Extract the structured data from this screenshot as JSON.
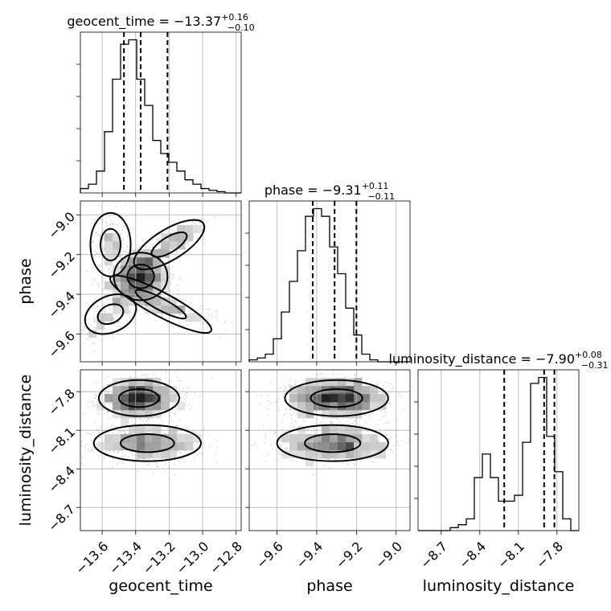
{
  "chart_data": {
    "type": "corner",
    "grid": true,
    "parameters": [
      "geocent_time",
      "phase",
      "luminosity_distance"
    ],
    "axis_labels": {
      "x": [
        "geocent_time",
        "phase",
        "luminosity_distance"
      ],
      "y": [
        "phase",
        "luminosity_distance"
      ]
    },
    "titles": [
      {
        "param": "geocent_time",
        "prefix": "geocent_time = ",
        "median": "−13.37",
        "plus": "+0.16",
        "minus": "−0.10"
      },
      {
        "param": "phase",
        "prefix": "phase = ",
        "median": "−9.31",
        "plus": "+0.11",
        "minus": "−0.11"
      },
      {
        "param": "luminosity_distance",
        "prefix": "luminosity_distance = ",
        "median": "−7.90",
        "plus": "+0.08",
        "minus": "−0.31"
      }
    ],
    "ranges": {
      "geocent_time": [
        -13.73,
        -12.77
      ],
      "phase": [
        -9.74,
        -8.93
      ],
      "luminosity_distance": [
        -8.88,
        -7.63
      ]
    },
    "ticks": {
      "geocent_time": [
        -13.6,
        -13.4,
        -13.2,
        -13.0,
        -12.8
      ],
      "phase": [
        -9.6,
        -9.4,
        -9.2,
        -9.0
      ],
      "luminosity_distance": [
        -8.7,
        -8.4,
        -8.1,
        -7.8
      ]
    },
    "tick_labels": {
      "geocent_time": [
        "−13.6",
        "−13.4",
        "−13.2",
        "−13.0",
        "−12.8"
      ],
      "phase": [
        "−9.6",
        "−9.4",
        "−9.2",
        "−9.0"
      ],
      "luminosity_distance": [
        "−8.7",
        "−8.4",
        "−8.1",
        "−7.8"
      ]
    },
    "quantiles": {
      "geocent_time": [
        -13.47,
        -13.37,
        -13.21
      ],
      "phase": [
        -9.42,
        -9.31,
        -9.2
      ],
      "luminosity_distance": [
        -8.21,
        -7.9,
        -7.82
      ]
    },
    "histograms": {
      "geocent_time": [
        1,
        2,
        5,
        14,
        26,
        34,
        35,
        26,
        20,
        12,
        9,
        7,
        5,
        3,
        2,
        1,
        0.6,
        0.3,
        0,
        0
      ],
      "phase": [
        0.5,
        1,
        2,
        6,
        13,
        21,
        29,
        38,
        40,
        38,
        30,
        23,
        14,
        7,
        2,
        0.5,
        0,
        0,
        0,
        0
      ],
      "luminosity_distance": [
        0,
        0,
        0,
        0,
        0.5,
        1,
        2,
        9,
        13,
        9,
        5,
        5,
        6,
        15,
        25,
        26,
        16,
        10,
        2,
        0
      ]
    },
    "density": {
      "geocent_time__phase": {
        "modes": [
          {
            "x": -13.37,
            "y": -9.31,
            "sx": 0.08,
            "sy": 0.06,
            "n": 900
          },
          {
            "x": -13.2,
            "y": -9.15,
            "sx": 0.12,
            "sy": 0.07,
            "n": 300,
            "corr": 0.9
          },
          {
            "x": -13.25,
            "y": -9.45,
            "sx": 0.17,
            "sy": 0.05,
            "n": 350,
            "corr": -0.8
          },
          {
            "x": -13.55,
            "y": -9.15,
            "sx": 0.06,
            "sy": 0.08,
            "n": 200
          },
          {
            "x": -13.55,
            "y": -9.5,
            "sx": 0.08,
            "sy": 0.07,
            "n": 200,
            "corr": 0.7
          }
        ]
      },
      "geocent_time__luminosity_distance": {
        "modes": [
          {
            "x": -13.38,
            "y": -7.85,
            "sx": 0.12,
            "sy": 0.07,
            "n": 1000
          },
          {
            "x": -13.33,
            "y": -8.2,
            "sx": 0.16,
            "sy": 0.07,
            "n": 700
          }
        ]
      },
      "phase__luminosity_distance": {
        "modes": [
          {
            "x": -9.3,
            "y": -7.85,
            "sx": 0.13,
            "sy": 0.07,
            "n": 1000
          },
          {
            "x": -9.32,
            "y": -8.2,
            "sx": 0.14,
            "sy": 0.07,
            "n": 700
          }
        ]
      }
    }
  }
}
